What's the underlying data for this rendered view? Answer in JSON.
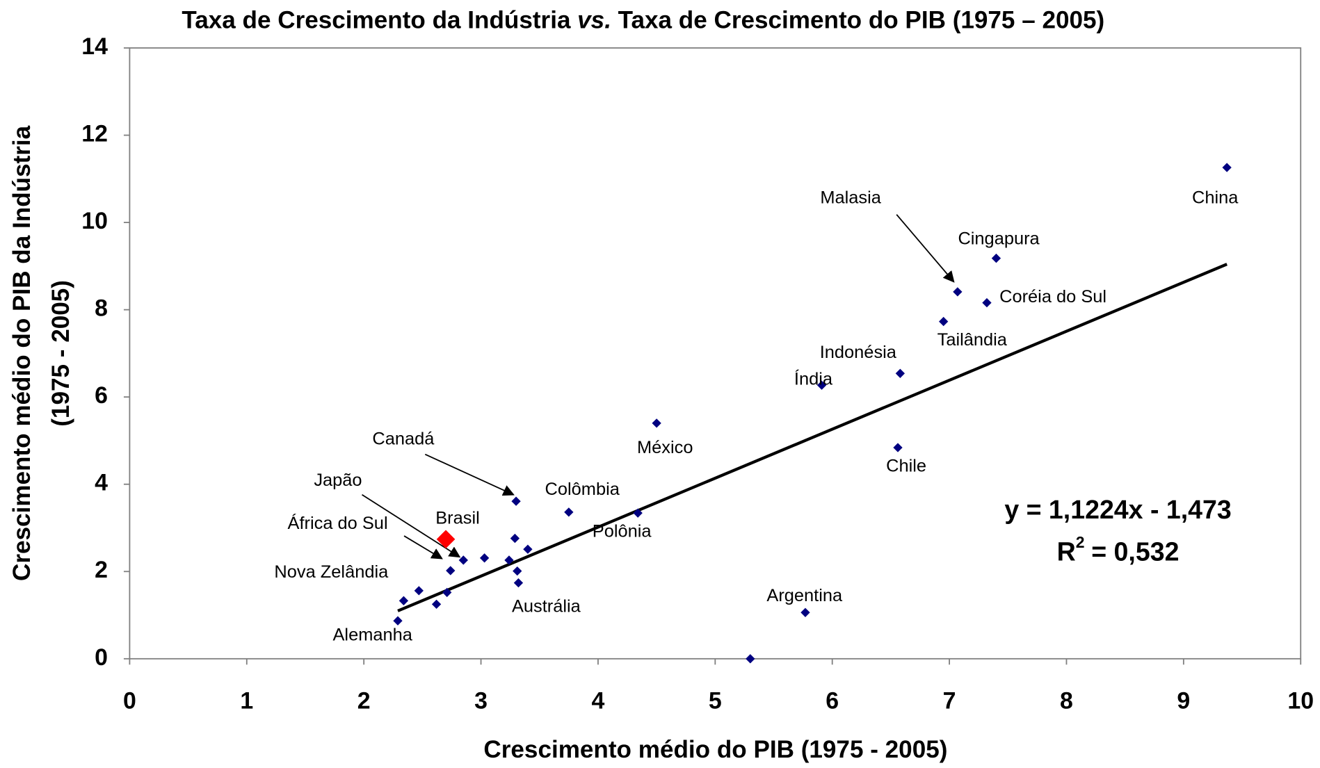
{
  "chart_data": {
    "type": "scatter",
    "title": [
      "Taxa de Crescimento da Indústria",
      "vs.",
      "Taxa de Crescimento do PIB (1975 – 2005)"
    ],
    "x_label": "Crescimento médio do PIB (1975 - 2005)",
    "y_label": [
      "Crescimento médio do PIB da Indústria",
      "(1975 - 2005)"
    ],
    "xlim": [
      0,
      10
    ],
    "xticks": [
      0,
      1,
      2,
      3,
      4,
      5,
      6,
      7,
      8,
      9,
      10
    ],
    "ylim": [
      0,
      14
    ],
    "yticks": [
      0,
      2,
      4,
      6,
      8,
      10,
      12,
      14
    ],
    "series": [
      {
        "color": "#000080",
        "x": [
          9.37,
          7.4,
          7.07,
          7.32,
          6.95,
          6.58,
          5.91,
          6.56,
          4.5,
          3.3,
          3.75,
          4.34,
          3.29,
          3.4,
          3.24,
          3.31,
          3.32,
          3.03,
          2.85,
          2.74,
          2.47,
          2.34,
          2.71,
          2.62,
          2.29,
          5.77,
          5.3
        ],
        "y": [
          11.26,
          9.18,
          8.41,
          8.16,
          7.73,
          6.54,
          6.27,
          4.84,
          5.4,
          3.61,
          3.36,
          3.34,
          2.76,
          2.51,
          2.26,
          2.01,
          1.74,
          2.31,
          2.26,
          2.02,
          1.56,
          1.33,
          1.52,
          1.25,
          0.87,
          1.06,
          0.0
        ],
        "labels": [
          "China",
          "Cingapura",
          "Malasia",
          "Coréia do Sul",
          "Tailândia",
          "Indonésia",
          "Índia",
          "Chile",
          "México",
          "Canadá",
          "Colômbia",
          "Polônia",
          null,
          null,
          null,
          null,
          "Austrália",
          null,
          "Japão",
          "África do Sul",
          null,
          "Nova Zelândia",
          null,
          null,
          "Alemanha",
          "Argentina",
          null
        ]
      },
      {
        "color": "#ff0000",
        "x": [
          2.7
        ],
        "y": [
          2.74
        ],
        "labels": [
          "Brasil"
        ]
      }
    ],
    "trendline": {
      "slope": 1.1224,
      "intercept": -1.473,
      "x": [
        2.29,
        9.37
      ],
      "color": "#000000"
    },
    "equation": "y = 1,1224x - 1,473",
    "r2_label": [
      "R",
      "2",
      "= 0,532"
    ]
  }
}
